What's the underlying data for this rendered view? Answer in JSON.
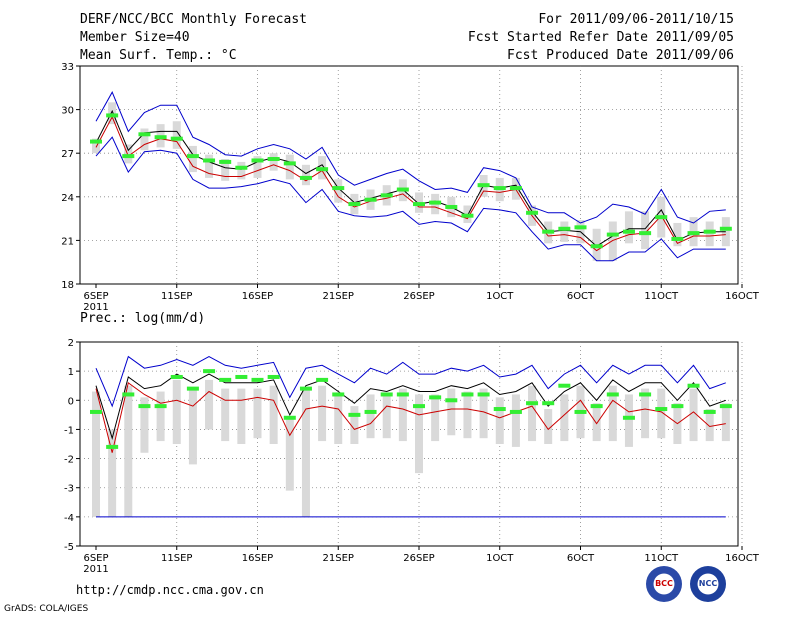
{
  "header": {
    "title": "DERF/NCC/BCC Monthly Forecast",
    "member_size": "Member Size=40",
    "variable": "Mean Surf. Temp.: °C",
    "period": "For 2011/09/06-2011/10/15",
    "refer_date": "Fcst Started Refer Date 2011/09/05",
    "produced_date": "Fcst Produced Date 2011/09/06"
  },
  "footer": {
    "url": "http://cmdp.ncc.cma.gov.cn",
    "grads": "GrADS: COLA/IGES",
    "logo_left": "BCC",
    "logo_right": "NCC"
  },
  "colors": {
    "envelope": "#0000cc",
    "mean": "#000000",
    "median": "#cc0000",
    "box": "#d9d9d9",
    "obs": "#33ee33",
    "grid": "#888888"
  },
  "chart_data": [
    {
      "type": "line",
      "title": "Mean Surf. Temp.: °C",
      "ylim": [
        18,
        33
      ],
      "yticks": [
        "18",
        "21",
        "24",
        "27",
        "30",
        "33"
      ],
      "xticks": [
        "6SEP",
        "11SEP",
        "16SEP",
        "21SEP",
        "26SEP",
        "1OCT",
        "6OCT",
        "11OCT",
        "16OCT"
      ],
      "xtick_year": "2011",
      "days": 40,
      "series": [
        {
          "name": "max",
          "values": [
            29.2,
            31.2,
            28.5,
            29.8,
            30.3,
            30.3,
            28.1,
            27.6,
            26.9,
            26.8,
            27.3,
            27.6,
            27.3,
            26.6,
            27.4,
            25.5,
            24.8,
            25.2,
            25.6,
            25.9,
            25.1,
            24.5,
            24.6,
            24.3,
            26.0,
            25.8,
            25.3,
            23.3,
            22.9,
            22.9,
            22.2,
            22.6,
            23.5,
            23.3,
            22.8,
            24.5,
            22.6,
            22.2,
            23.0,
            23.1
          ]
        },
        {
          "name": "mean",
          "values": [
            27.7,
            29.9,
            27.2,
            28.4,
            28.5,
            28.5,
            26.9,
            26.4,
            26.0,
            25.9,
            26.4,
            26.7,
            26.4,
            25.6,
            26.2,
            24.6,
            23.6,
            23.9,
            24.2,
            24.5,
            23.5,
            23.7,
            23.3,
            22.7,
            24.8,
            24.6,
            24.8,
            23.0,
            21.6,
            21.7,
            21.6,
            20.6,
            21.3,
            21.8,
            21.8,
            23.1,
            21.0,
            21.5,
            21.6,
            21.6
          ]
        },
        {
          "name": "median",
          "values": [
            27.4,
            29.5,
            26.8,
            27.6,
            28.0,
            27.8,
            26.1,
            25.6,
            25.4,
            25.4,
            25.8,
            26.2,
            25.8,
            25.1,
            25.8,
            24.0,
            23.3,
            23.7,
            23.9,
            24.2,
            23.3,
            23.3,
            22.9,
            22.5,
            24.4,
            24.3,
            24.5,
            22.7,
            21.3,
            21.4,
            21.2,
            20.3,
            21.0,
            21.4,
            21.5,
            22.7,
            20.8,
            21.3,
            21.3,
            21.4
          ]
        },
        {
          "name": "min",
          "values": [
            26.8,
            28.1,
            25.7,
            27.1,
            27.2,
            27.0,
            25.2,
            24.6,
            24.6,
            24.7,
            24.9,
            25.2,
            24.9,
            23.6,
            24.5,
            23.0,
            22.7,
            22.6,
            22.7,
            23.0,
            22.1,
            22.3,
            22.2,
            21.6,
            23.2,
            23.1,
            22.9,
            21.6,
            20.4,
            20.7,
            20.7,
            19.6,
            19.6,
            20.2,
            20.2,
            21.1,
            19.8,
            20.4,
            20.4,
            20.4
          ]
        },
        {
          "name": "box_low",
          "values": [
            27.0,
            29.0,
            26.3,
            27.2,
            27.4,
            27.3,
            25.7,
            25.3,
            25.1,
            25.2,
            25.3,
            25.8,
            25.2,
            24.8,
            25.2,
            23.6,
            22.8,
            23.1,
            23.4,
            23.7,
            22.9,
            22.8,
            22.6,
            22.2,
            24.0,
            23.7,
            23.8,
            22.0,
            20.8,
            20.9,
            20.8,
            19.6,
            19.6,
            20.8,
            20.4,
            21.2,
            20.6,
            20.6,
            20.6,
            20.6
          ]
        },
        {
          "name": "box_high",
          "values": [
            28.0,
            30.5,
            27.6,
            28.7,
            29.0,
            29.2,
            27.5,
            26.9,
            26.6,
            26.4,
            26.8,
            27.0,
            26.9,
            26.2,
            26.8,
            25.2,
            24.2,
            24.5,
            24.8,
            25.2,
            24.3,
            24.2,
            24.0,
            23.4,
            25.5,
            25.3,
            25.3,
            23.4,
            22.3,
            22.3,
            22.4,
            21.8,
            22.3,
            23.0,
            23.0,
            24.0,
            22.2,
            22.6,
            22.3,
            22.6
          ]
        },
        {
          "name": "obs",
          "values": [
            27.8,
            29.6,
            26.8,
            28.3,
            28.1,
            28.0,
            26.8,
            26.5,
            26.4,
            26.0,
            26.5,
            26.6,
            26.3,
            25.3,
            25.9,
            24.6,
            23.5,
            23.8,
            24.1,
            24.5,
            23.5,
            23.6,
            23.3,
            22.7,
            24.8,
            24.6,
            24.6,
            22.9,
            21.6,
            21.8,
            21.9,
            20.6,
            21.4,
            21.6,
            21.5,
            22.6,
            21.1,
            21.5,
            21.6,
            21.8
          ]
        }
      ]
    },
    {
      "type": "line",
      "title": "Prec.: log(mm/d)",
      "ylim": [
        -5,
        2
      ],
      "yticks": [
        "-5",
        "-4",
        "-3",
        "-2",
        "-1",
        "0",
        "1",
        "2"
      ],
      "xticks": [
        "6SEP",
        "11SEP",
        "16SEP",
        "21SEP",
        "26SEP",
        "1OCT",
        "6OCT",
        "11OCT",
        "16OCT"
      ],
      "xtick_year": "2011",
      "days": 40,
      "series": [
        {
          "name": "max",
          "values": [
            1.1,
            -0.2,
            1.5,
            1.1,
            1.2,
            1.4,
            1.2,
            1.5,
            1.2,
            1.1,
            1.2,
            1.3,
            0.1,
            1.1,
            1.2,
            0.9,
            0.6,
            1.1,
            0.9,
            1.3,
            0.9,
            0.9,
            1.1,
            1.0,
            1.2,
            0.8,
            0.9,
            1.2,
            0.4,
            0.9,
            1.2,
            0.6,
            1.2,
            0.9,
            1.2,
            1.2,
            0.6,
            1.2,
            0.4,
            0.6
          ]
        },
        {
          "name": "mean",
          "values": [
            0.5,
            -1.3,
            0.8,
            0.4,
            0.5,
            0.9,
            0.6,
            0.9,
            0.6,
            0.6,
            0.6,
            0.7,
            -0.5,
            0.5,
            0.7,
            0.3,
            -0.1,
            0.4,
            0.3,
            0.5,
            0.3,
            0.3,
            0.5,
            0.4,
            0.6,
            0.2,
            0.3,
            0.6,
            -0.2,
            0.3,
            0.6,
            0.0,
            0.7,
            0.3,
            0.6,
            0.6,
            0.0,
            0.6,
            -0.2,
            0.0
          ]
        },
        {
          "name": "median",
          "values": [
            0.4,
            -1.8,
            0.6,
            0.2,
            -0.1,
            0.0,
            -0.2,
            0.3,
            0.0,
            0.0,
            0.1,
            0.0,
            -1.2,
            -0.3,
            -0.2,
            -0.3,
            -1.0,
            -0.8,
            -0.2,
            -0.3,
            -0.5,
            -0.4,
            -0.3,
            -0.3,
            -0.4,
            -0.6,
            -0.4,
            -0.2,
            -1.0,
            -0.5,
            0.0,
            -0.8,
            0.0,
            -0.4,
            -0.3,
            -0.4,
            -0.8,
            -0.4,
            -0.9,
            -0.8
          ]
        },
        {
          "name": "min",
          "values": [
            -4,
            -4,
            -4,
            -4,
            -4,
            -4,
            -4,
            -4,
            -4,
            -4,
            -4,
            -4,
            -4,
            -4,
            -4,
            -4,
            -4,
            -4,
            -4,
            -4,
            -4,
            -4,
            -4,
            -4,
            -4,
            -4,
            -4,
            -4,
            -4,
            -4,
            -4,
            -4,
            -4,
            -4,
            -4,
            -4,
            -4,
            -4,
            -4,
            -4
          ]
        },
        {
          "name": "box_low",
          "values": [
            -4.0,
            -4.0,
            -4.0,
            -1.8,
            -1.4,
            -1.5,
            -2.2,
            -1.0,
            -1.4,
            -1.5,
            -1.3,
            -1.5,
            -3.1,
            -4.0,
            -1.4,
            -1.5,
            -1.5,
            -1.3,
            -1.3,
            -1.4,
            -2.5,
            -1.4,
            -1.2,
            -1.3,
            -1.3,
            -1.5,
            -1.6,
            -1.4,
            -1.5,
            -1.4,
            -1.3,
            -1.4,
            -1.4,
            -1.6,
            -1.3,
            -1.3,
            -1.5,
            -1.4,
            -1.4,
            -1.4
          ]
        },
        {
          "name": "box_high",
          "values": [
            0.3,
            -1.0,
            0.5,
            0.1,
            0.3,
            0.7,
            0.4,
            0.7,
            0.4,
            0.4,
            0.4,
            0.5,
            -0.6,
            0.4,
            0.5,
            0.2,
            -0.2,
            0.2,
            0.2,
            0.4,
            0.2,
            0.2,
            0.4,
            0.3,
            0.4,
            0.1,
            0.2,
            0.5,
            -0.3,
            0.2,
            0.5,
            -0.1,
            0.5,
            0.2,
            0.4,
            0.4,
            -0.1,
            0.4,
            -0.3,
            -0.1
          ]
        },
        {
          "name": "obs",
          "values": [
            -0.4,
            -1.6,
            0.2,
            -0.2,
            -0.2,
            0.8,
            0.4,
            1.0,
            0.7,
            0.8,
            0.7,
            0.8,
            -0.6,
            0.4,
            0.7,
            0.2,
            -0.5,
            -0.4,
            0.2,
            0.2,
            -0.2,
            0.1,
            0.0,
            0.2,
            0.2,
            -0.3,
            -0.4,
            -0.1,
            -0.1,
            0.5,
            -0.4,
            -0.2,
            0.2,
            -0.6,
            0.2,
            -0.3,
            -0.2,
            0.5,
            -0.4,
            -0.2
          ]
        }
      ]
    }
  ]
}
